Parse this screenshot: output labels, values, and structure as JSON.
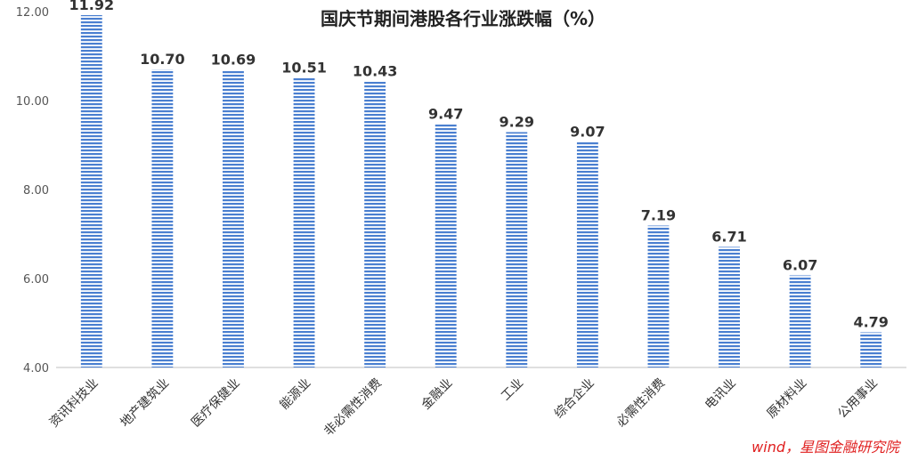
{
  "chart_data": {
    "type": "bar",
    "title": "国庆节期间港股各行业涨跌幅（%）",
    "categories": [
      "资讯科技业",
      "地产建筑业",
      "医疗保健业",
      "能源业",
      "非必需性消费",
      "金融业",
      "工业",
      "综合企业",
      "必需性消费",
      "电讯业",
      "原材料业",
      "公用事业"
    ],
    "values": [
      11.92,
      10.7,
      10.69,
      10.51,
      10.43,
      9.47,
      9.29,
      9.07,
      7.19,
      6.71,
      6.07,
      4.79
    ],
    "value_labels": [
      "11.92",
      "10.70",
      "10.69",
      "10.51",
      "10.43",
      "9.47",
      "9.29",
      "9.07",
      "7.19",
      "6.71",
      "6.07",
      "4.79"
    ],
    "ylim": [
      4,
      12
    ],
    "yticks": [
      4,
      6,
      8,
      10,
      12
    ],
    "ytick_labels": [
      "4.00",
      "6.00",
      "8.00",
      "10.00",
      "12.00"
    ],
    "grid": false,
    "bar_color": "#4a7fd0",
    "bar_pattern": "horizontal-stripes",
    "xlabel": "",
    "ylabel": ""
  },
  "source_note": "wind，星图金融研究院",
  "colors": {
    "source": "#e02020",
    "axis": "#bfbfbf"
  }
}
